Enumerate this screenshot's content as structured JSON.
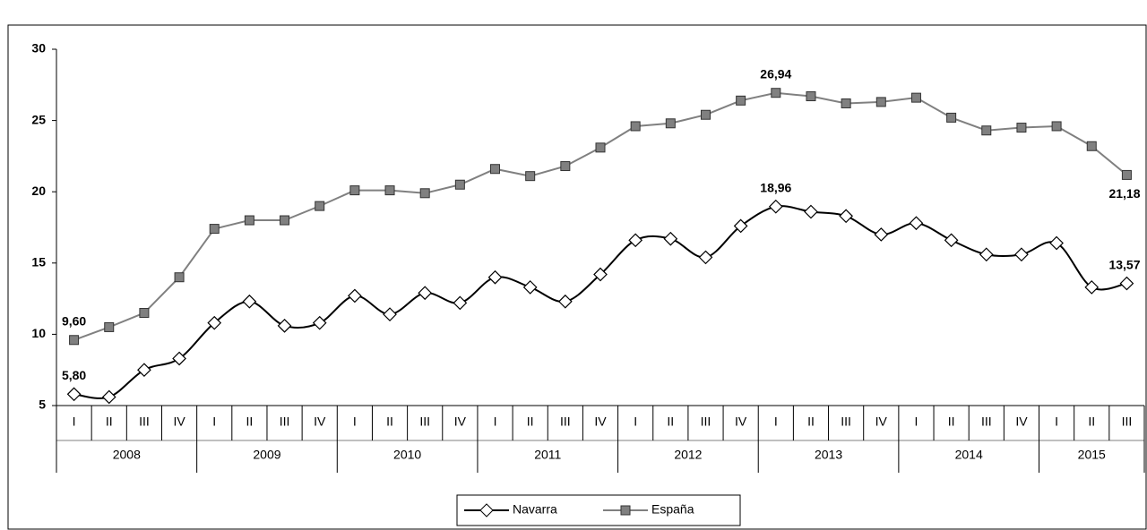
{
  "chart_data": {
    "type": "line",
    "categories": [
      "I",
      "II",
      "III",
      "IV",
      "I",
      "II",
      "III",
      "IV",
      "I",
      "II",
      "III",
      "IV",
      "I",
      "II",
      "III",
      "IV",
      "I",
      "II",
      "III",
      "IV",
      "I",
      "II",
      "III",
      "IV",
      "I",
      "II",
      "III",
      "IV",
      "I",
      "II",
      "III"
    ],
    "years": [
      "2008",
      "2009",
      "2010",
      "2011",
      "2012",
      "2013",
      "2014",
      "2015"
    ],
    "ylim": [
      5,
      30
    ],
    "yticks": [
      5,
      10,
      15,
      20,
      25,
      30
    ],
    "legend": "bottom",
    "series": [
      {
        "name": "Navarra",
        "color": "#000000",
        "marker": "diamond",
        "values": [
          5.8,
          5.6,
          7.5,
          8.3,
          10.8,
          12.3,
          10.6,
          10.8,
          12.7,
          11.4,
          12.9,
          12.2,
          14.0,
          13.3,
          12.3,
          14.2,
          16.6,
          16.7,
          15.4,
          17.6,
          18.96,
          18.6,
          18.3,
          17.0,
          17.8,
          16.6,
          15.6,
          15.6,
          16.4,
          13.3,
          13.57
        ],
        "value_labels": [
          "5,80",
          null,
          null,
          null,
          null,
          null,
          null,
          null,
          null,
          null,
          null,
          null,
          null,
          null,
          null,
          null,
          null,
          null,
          null,
          null,
          "18,96",
          null,
          null,
          null,
          null,
          null,
          null,
          null,
          null,
          null,
          "13,57"
        ]
      },
      {
        "name": "España",
        "color": "#808080",
        "marker": "square",
        "values": [
          9.6,
          10.5,
          11.5,
          14.0,
          17.4,
          18.0,
          18.0,
          19.0,
          20.1,
          20.1,
          19.9,
          20.5,
          21.6,
          21.1,
          21.8,
          23.1,
          24.6,
          24.8,
          25.4,
          26.4,
          26.94,
          26.7,
          26.2,
          26.3,
          26.6,
          25.2,
          24.3,
          24.5,
          24.6,
          23.2,
          21.18
        ],
        "value_labels": [
          "9,60",
          null,
          null,
          null,
          null,
          null,
          null,
          null,
          null,
          null,
          null,
          null,
          null,
          null,
          null,
          null,
          null,
          null,
          null,
          null,
          "26,94",
          null,
          null,
          null,
          null,
          null,
          null,
          null,
          null,
          null,
          "21,18"
        ]
      }
    ]
  }
}
